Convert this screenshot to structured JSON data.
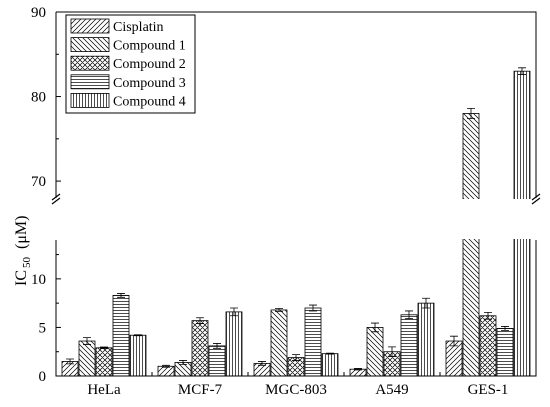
{
  "chart_data": {
    "type": "bar",
    "title": "",
    "xlabel": "",
    "ylabel_main": "IC",
    "ylabel_sub": "50",
    "ylabel_unit": "(μM)",
    "categories": [
      "HeLa",
      "MCF-7",
      "MGC-803",
      "A549",
      "GES-1"
    ],
    "series": [
      {
        "name": "Cisplatin",
        "pattern": "diag-up",
        "values": [
          1.5,
          1.0,
          1.3,
          0.7,
          3.6
        ],
        "errors": [
          0.25,
          0.1,
          0.2,
          0.08,
          0.5
        ]
      },
      {
        "name": "Compound 1",
        "pattern": "diag-down",
        "values": [
          3.6,
          1.4,
          6.8,
          5.0,
          78.0
        ],
        "errors": [
          0.35,
          0.2,
          0.15,
          0.45,
          0.6
        ]
      },
      {
        "name": "Compound 2",
        "pattern": "crosshatch",
        "values": [
          2.9,
          5.7,
          1.9,
          2.5,
          6.2
        ],
        "errors": [
          0.08,
          0.3,
          0.3,
          0.5,
          0.35
        ]
      },
      {
        "name": "Compound 3",
        "pattern": "horizontal",
        "values": [
          8.3,
          3.1,
          7.0,
          6.3,
          4.9
        ],
        "errors": [
          0.2,
          0.25,
          0.3,
          0.4,
          0.2
        ]
      },
      {
        "name": "Compound 4",
        "pattern": "vertical",
        "values": [
          4.2,
          6.6,
          2.3,
          7.5,
          83.0
        ],
        "errors": [
          0.05,
          0.4,
          0.05,
          0.5,
          0.4
        ]
      }
    ],
    "y_axis_break": {
      "lower_range": [
        0,
        14
      ],
      "upper_range": [
        68,
        90
      ]
    },
    "y_ticks": [
      0,
      5,
      10,
      70,
      80,
      90
    ],
    "legend_position": "top-left",
    "grid": false
  }
}
